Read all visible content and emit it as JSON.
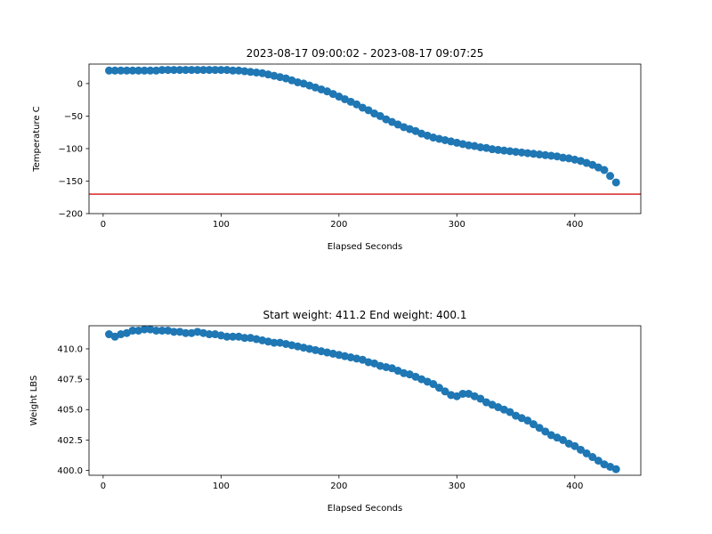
{
  "chart_data": [
    {
      "type": "scatter",
      "title": "2023-08-17 09:00:02 - 2023-08-17 09:07:25",
      "xlabel": "Elapsed Seconds",
      "ylabel": "Temperature C",
      "xlim": [
        -12,
        456
      ],
      "ylim": [
        -200,
        30
      ],
      "x_ticks": [
        0,
        100,
        200,
        300,
        400
      ],
      "y_ticks": [
        0,
        -50,
        -100,
        -150,
        -200
      ],
      "x_tick_labels": [
        "0",
        "100",
        "200",
        "300",
        "400"
      ],
      "y_tick_labels": [
        "0",
        "−50",
        "−100",
        "−150",
        "−200"
      ],
      "series_color": "#1f77b4",
      "reference_line": {
        "y": -170,
        "color": "#d62728"
      },
      "series": [
        {
          "x": [
            5,
            10,
            15,
            20,
            25,
            30,
            35,
            40,
            45,
            50,
            55,
            60,
            65,
            70,
            75,
            80,
            85,
            90,
            95,
            100,
            105,
            110,
            115,
            120,
            125,
            130,
            135,
            140,
            145,
            150,
            155,
            160,
            165,
            170,
            175,
            180,
            185,
            190,
            195,
            200,
            205,
            210,
            215,
            220,
            225,
            230,
            235,
            240,
            245,
            250,
            255,
            260,
            265,
            270,
            275,
            280,
            285,
            290,
            295,
            300,
            305,
            310,
            315,
            320,
            325,
            330,
            335,
            340,
            345,
            350,
            355,
            360,
            365,
            370,
            375,
            380,
            385,
            390,
            395,
            400,
            405,
            410,
            415,
            420,
            425,
            430,
            435
          ],
          "y": [
            20,
            20,
            20,
            20,
            20,
            20,
            20,
            20,
            20,
            21,
            21,
            21,
            21,
            21,
            21,
            21,
            21,
            21,
            21,
            21,
            21,
            20,
            20,
            19,
            18,
            17,
            16,
            14,
            12,
            10,
            8,
            5,
            2,
            0,
            -3,
            -6,
            -9,
            -12,
            -16,
            -20,
            -24,
            -28,
            -32,
            -37,
            -41,
            -46,
            -50,
            -55,
            -59,
            -63,
            -67,
            -70,
            -73,
            -77,
            -80,
            -83,
            -85,
            -87,
            -89,
            -91,
            -93,
            -95,
            -96,
            -98,
            -99,
            -101,
            -102,
            -103,
            -104,
            -105,
            -106,
            -107,
            -108,
            -109,
            -110,
            -111,
            -112,
            -114,
            -115,
            -117,
            -119,
            -122,
            -125,
            -129,
            -133,
            -142,
            -152
          ]
        }
      ]
    },
    {
      "type": "scatter",
      "title": "Start weight: 411.2 End weight: 400.1",
      "xlabel": "Elapsed Seconds",
      "ylabel": "Weight LBS",
      "xlim": [
        -12,
        456
      ],
      "ylim": [
        399.6,
        411.9
      ],
      "x_ticks": [
        0,
        100,
        200,
        300,
        400
      ],
      "y_ticks": [
        400.0,
        402.5,
        405.0,
        407.5,
        410.0
      ],
      "x_tick_labels": [
        "0",
        "100",
        "200",
        "300",
        "400"
      ],
      "y_tick_labels": [
        "400.0",
        "402.5",
        "405.0",
        "407.5",
        "410.0"
      ],
      "series_color": "#1f77b4",
      "series": [
        {
          "x": [
            5,
            10,
            15,
            20,
            25,
            30,
            35,
            40,
            45,
            50,
            55,
            60,
            65,
            70,
            75,
            80,
            85,
            90,
            95,
            100,
            105,
            110,
            115,
            120,
            125,
            130,
            135,
            140,
            145,
            150,
            155,
            160,
            165,
            170,
            175,
            180,
            185,
            190,
            195,
            200,
            205,
            210,
            215,
            220,
            225,
            230,
            235,
            240,
            245,
            250,
            255,
            260,
            265,
            270,
            275,
            280,
            285,
            290,
            295,
            300,
            305,
            310,
            315,
            320,
            325,
            330,
            335,
            340,
            345,
            350,
            355,
            360,
            365,
            370,
            375,
            380,
            385,
            390,
            395,
            400,
            405,
            410,
            415,
            420,
            425,
            430,
            435
          ],
          "y": [
            411.2,
            411.0,
            411.2,
            411.3,
            411.5,
            411.5,
            411.6,
            411.6,
            411.5,
            411.5,
            411.5,
            411.4,
            411.4,
            411.3,
            411.3,
            411.4,
            411.3,
            411.2,
            411.2,
            411.1,
            411.0,
            411.0,
            411.0,
            410.9,
            410.9,
            410.8,
            410.7,
            410.6,
            410.5,
            410.5,
            410.4,
            410.3,
            410.2,
            410.1,
            410.0,
            409.9,
            409.8,
            409.7,
            409.6,
            409.5,
            409.4,
            409.3,
            409.2,
            409.1,
            408.9,
            408.8,
            408.6,
            408.5,
            408.4,
            408.2,
            408.0,
            407.9,
            407.7,
            407.5,
            407.3,
            407.1,
            406.8,
            406.5,
            406.2,
            406.1,
            406.3,
            406.3,
            406.1,
            405.9,
            405.6,
            405.4,
            405.2,
            405.0,
            404.8,
            404.5,
            404.3,
            404.1,
            403.8,
            403.5,
            403.2,
            402.9,
            402.7,
            402.5,
            402.2,
            402.0,
            401.7,
            401.4,
            401.1,
            400.8,
            400.5,
            400.3,
            400.1
          ]
        }
      ]
    }
  ]
}
